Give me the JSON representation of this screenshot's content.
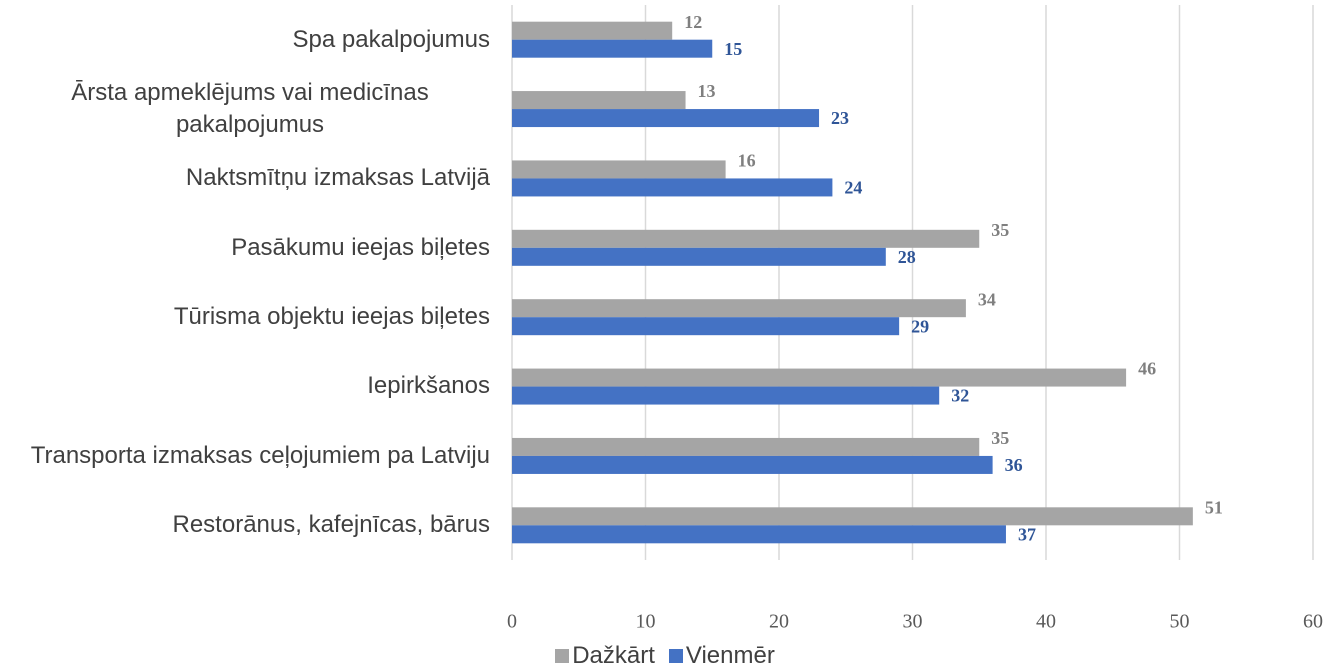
{
  "chart_data": {
    "type": "bar",
    "orientation": "horizontal",
    "categories": [
      "Spa pakalpojumus",
      "Ārsta apmeklējums vai medicīnas pakalpojumus",
      "Naktsmītņu izmaksas Latvijā",
      "Pasākumu ieejas biļetes",
      "Tūrisma objektu ieejas biļetes",
      "Iepirkšanos",
      "Transporta izmaksas ceļojumiem pa Latviju",
      "Restorānus, kafejnīcas, bārus"
    ],
    "series": [
      {
        "name": "Dažkārt",
        "color": "#a5a5a5",
        "values": [
          12,
          13,
          16,
          35,
          34,
          46,
          35,
          51
        ]
      },
      {
        "name": "Vienmēr",
        "color": "#4472c4",
        "values": [
          15,
          23,
          24,
          28,
          29,
          32,
          36,
          37
        ]
      }
    ],
    "xlim": [
      0,
      60
    ],
    "xticks": [
      0,
      10,
      20,
      30,
      40,
      50,
      60
    ],
    "grid": true,
    "legend": "bottom"
  }
}
